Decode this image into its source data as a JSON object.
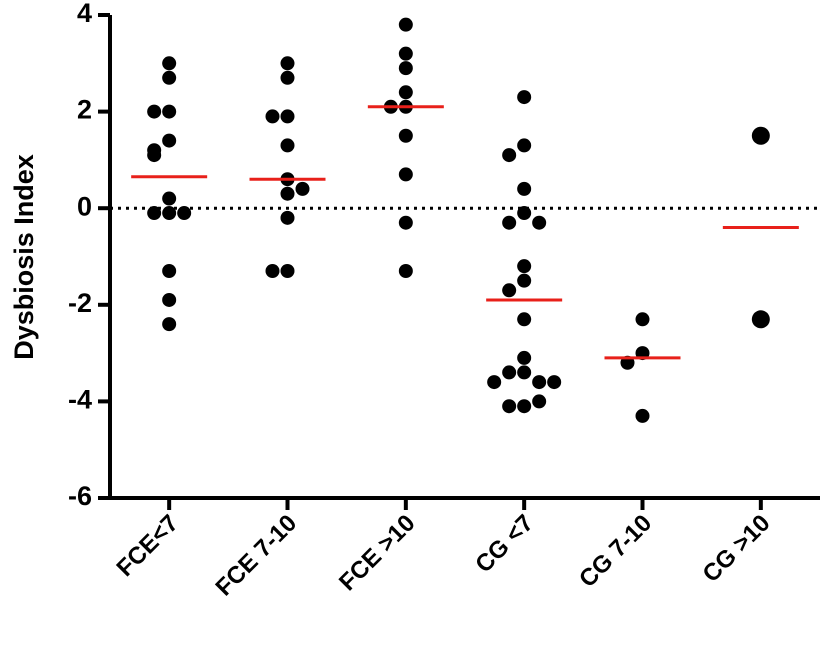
{
  "chart_data": {
    "type": "dot",
    "y_label": "Dysbiosis Index",
    "categories": [
      "FCE<7",
      "FCE 7-10",
      "FCE >10",
      "CG <7",
      "CG 7-10",
      "CG >10"
    ],
    "groups": [
      [
        3.0,
        2.7,
        2.0,
        2.0,
        1.4,
        1.2,
        1.1,
        0.2,
        -0.1,
        -0.1,
        -0.1,
        -1.3,
        -1.9,
        -2.4
      ],
      [
        3.0,
        2.7,
        1.9,
        1.9,
        1.3,
        0.6,
        0.3,
        0.4,
        -0.2,
        -1.3,
        -1.3
      ],
      [
        3.8,
        3.2,
        2.9,
        2.4,
        2.1,
        2.1,
        1.5,
        0.7,
        -0.3,
        -1.3
      ],
      [
        2.3,
        1.3,
        1.1,
        0.4,
        -0.1,
        -0.3,
        -0.3,
        -1.2,
        -1.5,
        -1.7,
        -2.3,
        -3.1,
        -3.4,
        -3.4,
        -3.6,
        -3.6,
        -3.6,
        -4.1,
        -4.1,
        -4.0
      ],
      [
        -2.3,
        -3.0,
        -3.2,
        -4.3
      ],
      [
        1.5,
        -2.3
      ]
    ],
    "medians": [
      0.65,
      0.6,
      2.1,
      -1.9,
      -3.1,
      -0.4
    ],
    "dot_color": "#000000",
    "median_color": "#e8201a",
    "ylim": [
      -6,
      4
    ],
    "yticks": [
      -6,
      -4,
      -2,
      0,
      2,
      4
    ],
    "reference_line": 0
  }
}
